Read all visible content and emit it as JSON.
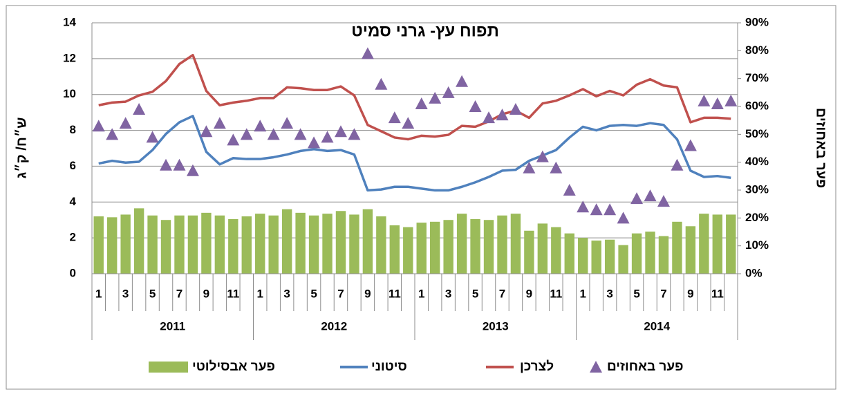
{
  "chart_data": {
    "type": "combo",
    "title": "תפוח עץ- גרני סמיט",
    "y_label": "ש״ח/ ק״ג",
    "y2_label": "פער באחוזים",
    "categories": [
      "1",
      null,
      "3",
      null,
      "5",
      null,
      "7",
      null,
      "9",
      null,
      "11",
      null,
      "1",
      null,
      "3",
      null,
      "5",
      null,
      "7",
      null,
      "9",
      null,
      "11",
      null,
      "1",
      null,
      "3",
      null,
      "5",
      null,
      "7",
      null,
      "9",
      null,
      "11",
      null,
      "1",
      null,
      "3",
      null,
      "5",
      null,
      "7",
      null,
      "9",
      null,
      "11",
      null
    ],
    "groups": [
      "2011",
      "2012",
      "2013",
      "2014"
    ],
    "ylim": [
      0,
      14
    ],
    "yticks": [
      0,
      2,
      4,
      6,
      8,
      10,
      12,
      14
    ],
    "y2lim": [
      0,
      90
    ],
    "y2ticks": [
      {
        "value": 0,
        "label": "0%"
      },
      {
        "value": 10,
        "label": "10%"
      },
      {
        "value": 20,
        "label": "20%"
      },
      {
        "value": 30,
        "label": "30%"
      },
      {
        "value": 40,
        "label": "40%"
      },
      {
        "value": 50,
        "label": "50%"
      },
      {
        "value": 60,
        "label": "60%"
      },
      {
        "value": 70,
        "label": "70%"
      },
      {
        "value": 80,
        "label": "80%"
      },
      {
        "value": 90,
        "label": "90%"
      }
    ],
    "grid": true,
    "legend": "bottom",
    "series": [
      {
        "name": "פער אבסילוטי",
        "kind": "bar",
        "color": "#9bbb59",
        "values": [
          3.2,
          3.15,
          3.3,
          3.65,
          3.25,
          3.0,
          3.25,
          3.25,
          3.4,
          3.25,
          3.05,
          3.2,
          3.35,
          3.25,
          3.6,
          3.4,
          3.25,
          3.35,
          3.5,
          3.3,
          3.6,
          3.2,
          2.7,
          2.6,
          2.85,
          2.9,
          3.0,
          3.35,
          3.05,
          3.0,
          3.25,
          3.35,
          2.4,
          2.8,
          2.6,
          2.25,
          2.0,
          1.85,
          1.9,
          1.6,
          2.25,
          2.35,
          2.1,
          2.9,
          2.65,
          3.35,
          3.3,
          3.3
        ]
      },
      {
        "name": "סיטוני",
        "kind": "line",
        "color": "#4f81bd",
        "values": [
          6.15,
          6.3,
          6.2,
          6.25,
          6.9,
          7.8,
          8.45,
          8.8,
          6.8,
          6.1,
          6.45,
          6.4,
          6.4,
          6.5,
          6.65,
          6.85,
          6.95,
          6.85,
          6.9,
          6.65,
          4.65,
          4.7,
          4.85,
          4.85,
          4.75,
          4.65,
          4.65,
          4.85,
          5.1,
          5.4,
          5.75,
          5.8,
          6.3,
          6.6,
          6.9,
          7.6,
          8.2,
          8.0,
          8.25,
          8.3,
          8.25,
          8.4,
          8.3,
          7.5,
          5.75,
          5.4,
          5.45,
          5.35
        ]
      },
      {
        "name": "לצרכן",
        "kind": "line",
        "color": "#c0504d",
        "values": [
          9.4,
          9.55,
          9.6,
          9.95,
          10.15,
          10.75,
          11.7,
          12.2,
          10.2,
          9.4,
          9.55,
          9.65,
          9.8,
          9.8,
          10.4,
          10.35,
          10.25,
          10.25,
          10.45,
          9.95,
          8.3,
          7.95,
          7.6,
          7.5,
          7.7,
          7.65,
          7.75,
          8.25,
          8.2,
          8.5,
          8.9,
          9.1,
          8.7,
          9.5,
          9.65,
          9.95,
          10.3,
          9.9,
          10.2,
          9.95,
          10.55,
          10.85,
          10.5,
          10.4,
          8.45,
          8.7,
          8.7,
          8.65
        ]
      },
      {
        "name": "פער באחוזים",
        "kind": "marker",
        "axis": "y2",
        "color": "#8064a2",
        "values": [
          53,
          50,
          54,
          59,
          49,
          39,
          39,
          37,
          51,
          54,
          48,
          50,
          53,
          50,
          54,
          50,
          47,
          49,
          51,
          50,
          79,
          68,
          56,
          54,
          61,
          63,
          65,
          69,
          60,
          56,
          57,
          59,
          38,
          42,
          38,
          30,
          24,
          23,
          23,
          20,
          27,
          28,
          26,
          39,
          46,
          62,
          61,
          62
        ]
      }
    ]
  }
}
